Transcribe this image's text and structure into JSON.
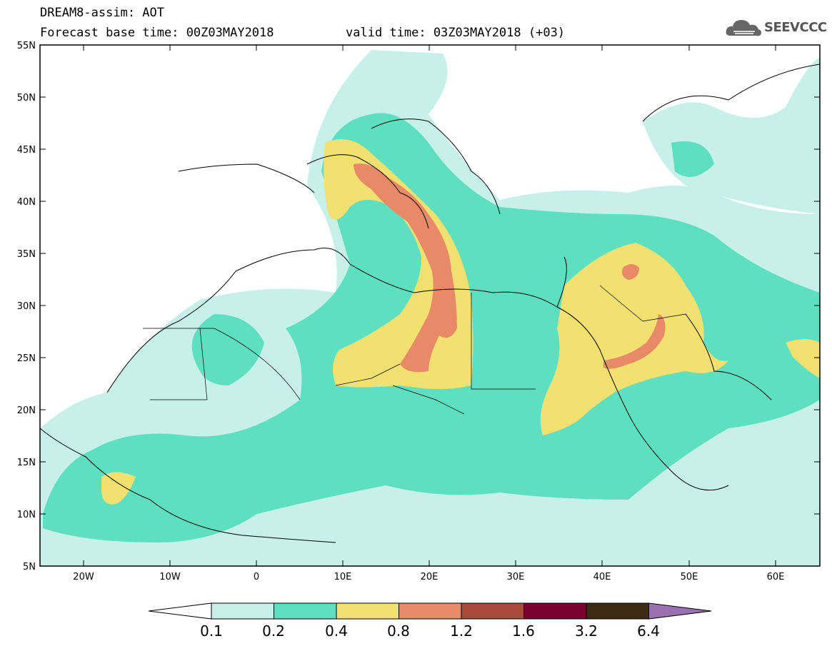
{
  "header": {
    "line1": "DREAM8-assim: AOT",
    "base_time": "Forecast base time: 00Z03MAY2018",
    "valid_time": "valid time: 03Z03MAY2018 (+03)"
  },
  "logo": {
    "text": "SEEVCCC",
    "icon": "cloud-icon"
  },
  "map": {
    "projection": "lat-lon",
    "lon_range": [
      -25,
      65
    ],
    "lat_range": [
      5,
      55
    ],
    "lat_ticks": [
      "55N",
      "50N",
      "45N",
      "40N",
      "35N",
      "30N",
      "25N",
      "20N",
      "15N",
      "10N",
      "5N"
    ],
    "lon_ticks": [
      "20W",
      "10W",
      "0",
      "10E",
      "20E",
      "30E",
      "40E",
      "50E",
      "60E"
    ]
  },
  "colorbar": {
    "levels": [
      "0.1",
      "0.2",
      "0.4",
      "0.8",
      "1.2",
      "1.6",
      "3.2",
      "6.4"
    ],
    "colors": [
      "#c8f0ea",
      "#5ee0c0",
      "#f2e070",
      "#e88a68",
      "#a84a3c",
      "#7a0030",
      "#3c2a14",
      "#9a70b0"
    ],
    "under_color": "#ffffff",
    "over_color": "#9a70b0"
  }
}
